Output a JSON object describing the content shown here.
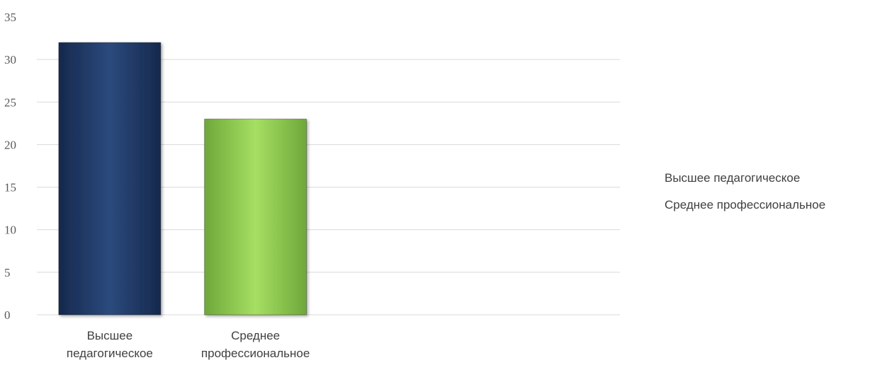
{
  "chart_data": {
    "type": "bar",
    "categories": [
      "Высшее педагогическое",
      "Среднее профессиональное"
    ],
    "category_lines": [
      [
        "Высшее",
        "педагогическое"
      ],
      [
        "Среднее",
        "профессиональное"
      ]
    ],
    "values": [
      32,
      23
    ],
    "ylim": [
      0,
      35
    ],
    "yticks": [
      0,
      5,
      10,
      15,
      20,
      25,
      30,
      35
    ],
    "title": "",
    "xlabel": "",
    "ylabel": "",
    "grid": true,
    "legend_position": "right",
    "legend": [
      "Высшее педагогическое",
      "Среднее профессиональное"
    ],
    "colors": [
      "#1f3864",
      "#92d050"
    ]
  }
}
